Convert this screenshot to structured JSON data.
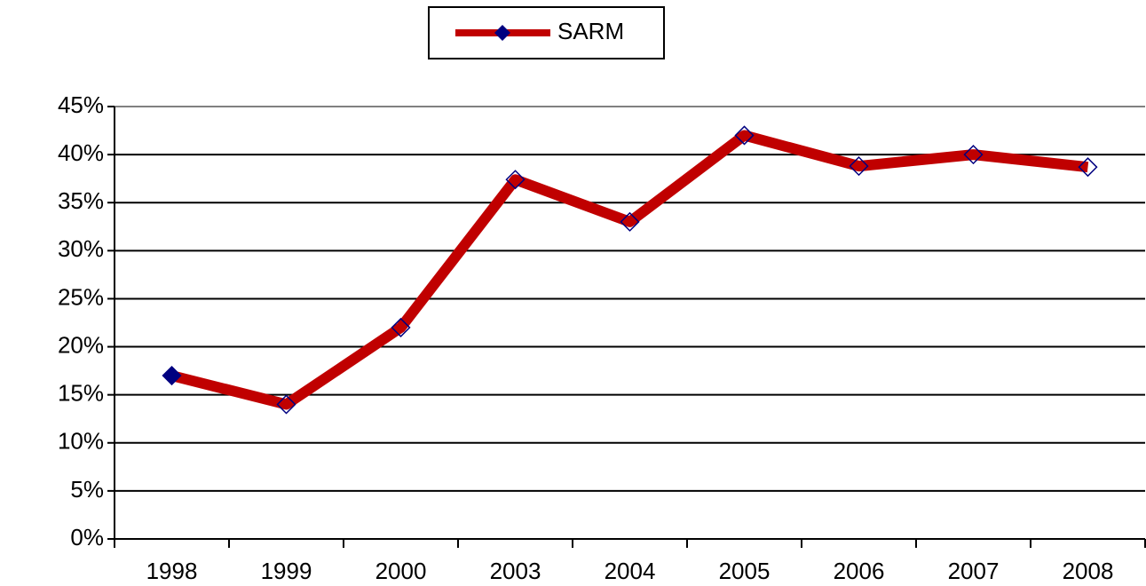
{
  "chart_data": {
    "type": "line",
    "categories": [
      "1998",
      "1999",
      "2000",
      "2003",
      "2004",
      "2005",
      "2006",
      "2007",
      "2008"
    ],
    "series": [
      {
        "name": "SARM",
        "color": "#c00000",
        "marker_color": "#000080",
        "values": [
          17,
          14,
          22,
          37.4,
          33,
          42,
          38.8,
          40,
          38.7
        ]
      }
    ],
    "ylim": [
      0,
      45
    ],
    "yticks": [
      {
        "value": 0,
        "label": "0%"
      },
      {
        "value": 5,
        "label": "5%"
      },
      {
        "value": 10,
        "label": "10%"
      },
      {
        "value": 15,
        "label": "15%"
      },
      {
        "value": 20,
        "label": "20%"
      },
      {
        "value": 25,
        "label": "25%"
      },
      {
        "value": 30,
        "label": "30%"
      },
      {
        "value": 35,
        "label": "35%"
      },
      {
        "value": 40,
        "label": "40%"
      },
      {
        "value": 45,
        "label": "45%"
      }
    ],
    "grid": true,
    "legend": "top"
  }
}
